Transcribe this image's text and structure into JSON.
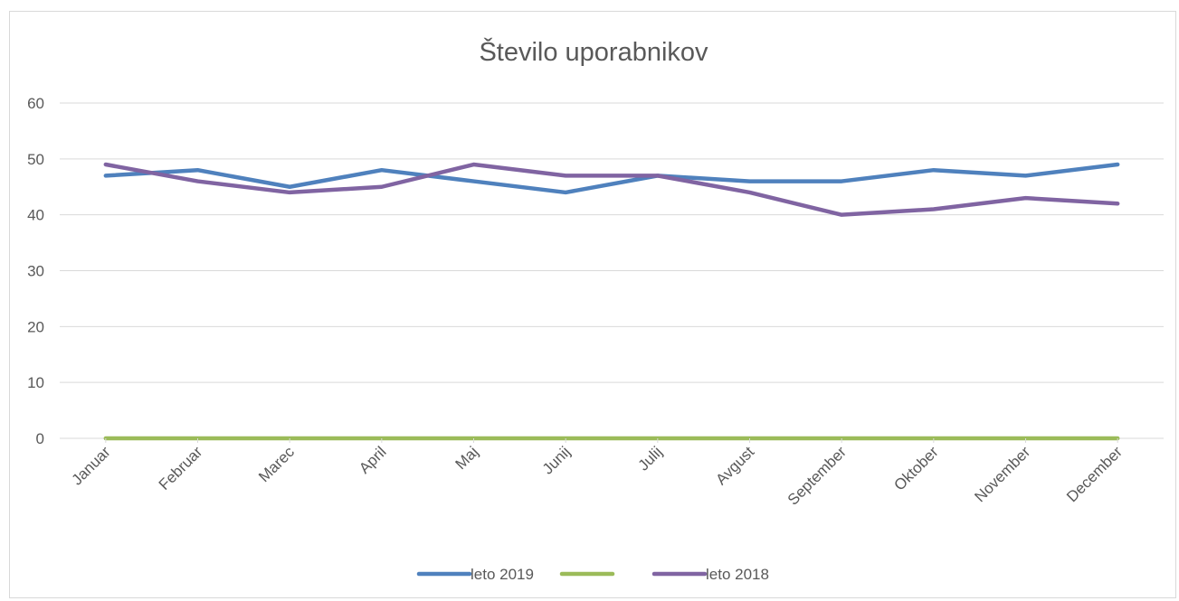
{
  "chart_data": {
    "type": "line",
    "title": "Število uporabnikov",
    "xlabel": "",
    "ylabel": "",
    "categories": [
      "Januar",
      "Februar",
      "Marec",
      "April",
      "Maj",
      "Junij",
      "Julij",
      "Avgust",
      "September",
      "Oktober",
      "November",
      "December"
    ],
    "ylim": [
      0,
      60
    ],
    "yticks": [
      0,
      10,
      20,
      30,
      40,
      50,
      60
    ],
    "grid": true,
    "legend_position": "bottom",
    "series": [
      {
        "name": "leto 2019",
        "color": "#4f81bd",
        "values": [
          47,
          48,
          45,
          48,
          46,
          44,
          47,
          46,
          46,
          48,
          47,
          49
        ]
      },
      {
        "name": "",
        "color": "#9bbb59",
        "values": [
          0,
          0,
          0,
          0,
          0,
          0,
          0,
          0,
          0,
          0,
          0,
          0
        ]
      },
      {
        "name": "leto 2018",
        "color": "#8064a2",
        "values": [
          49,
          46,
          44,
          45,
          49,
          47,
          47,
          44,
          40,
          41,
          43,
          42
        ]
      }
    ]
  }
}
